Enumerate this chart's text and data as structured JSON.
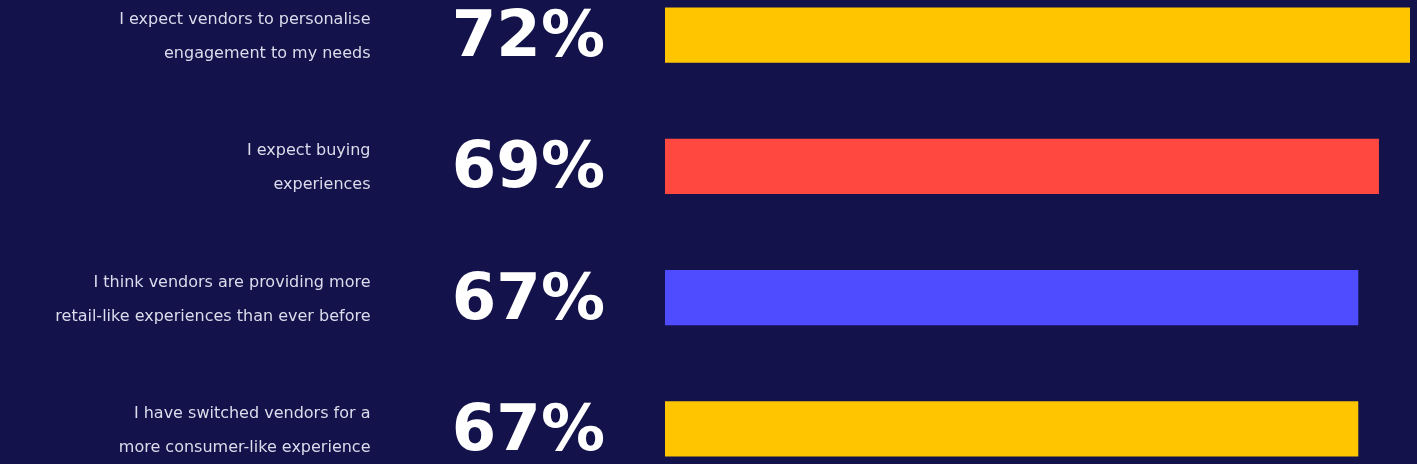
{
  "chart_data": {
    "type": "bar",
    "orientation": "horizontal",
    "categories": [
      "I expect vendors to personalise engagement to my needs",
      "I expect buying experiences",
      "I think vendors are providing more retail-like experiences than ever before",
      "I have switched vendors for a more consumer-like experience"
    ],
    "values": [
      72,
      69,
      67,
      67
    ],
    "value_labels": [
      "72%",
      "69%",
      "67%",
      "67%"
    ],
    "colors": [
      "#ffc600",
      "#ff4840",
      "#4f4cff",
      "#ffc600"
    ]
  }
}
